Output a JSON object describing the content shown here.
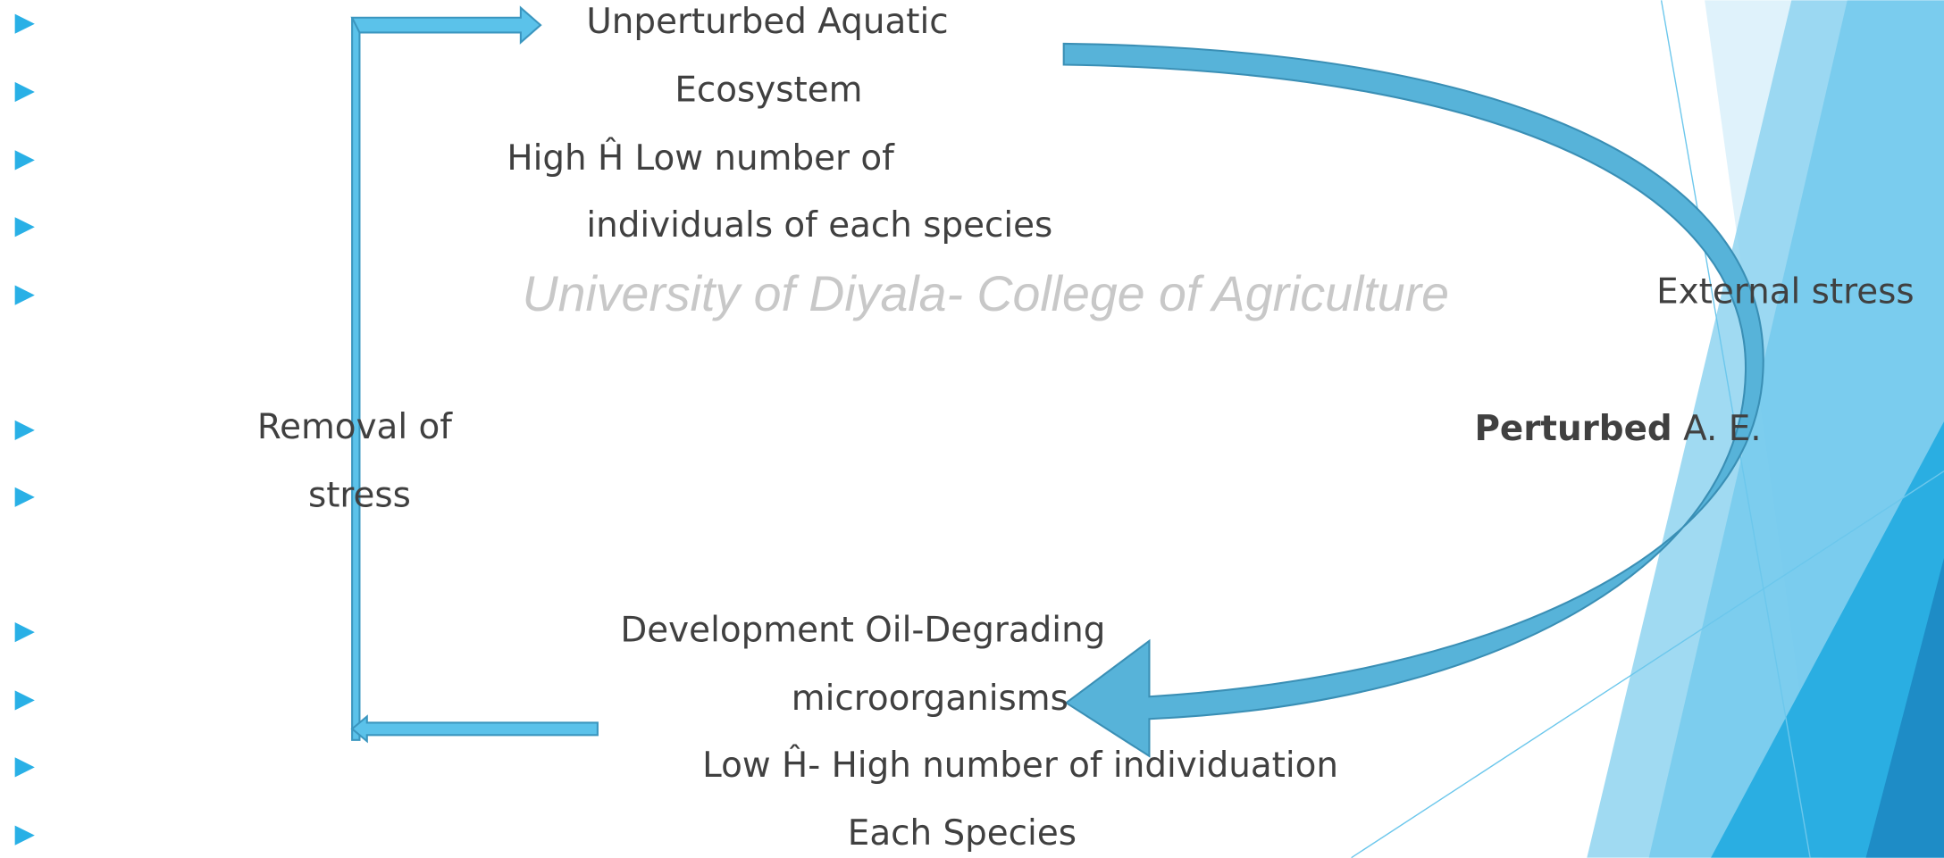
{
  "slide": {
    "top_node": {
      "lines": [
        "Unperturbed Aquatic",
        "Ecosystem",
        "High Ĥ  Low number of",
        "individuals of each species"
      ]
    },
    "watermark": "University of Diyala- College of Agriculture",
    "right_label": "External stress",
    "left_label": {
      "lines": [
        "Removal  of",
        "stress"
      ]
    },
    "perturbed": {
      "bold": "Perturbed",
      "rest": "A. E."
    },
    "bottom_node": {
      "lines": [
        "Development Oil-Degrading",
        "microorganisms",
        "Low Ĥ- High number of individuation",
        "Each Species"
      ]
    }
  }
}
